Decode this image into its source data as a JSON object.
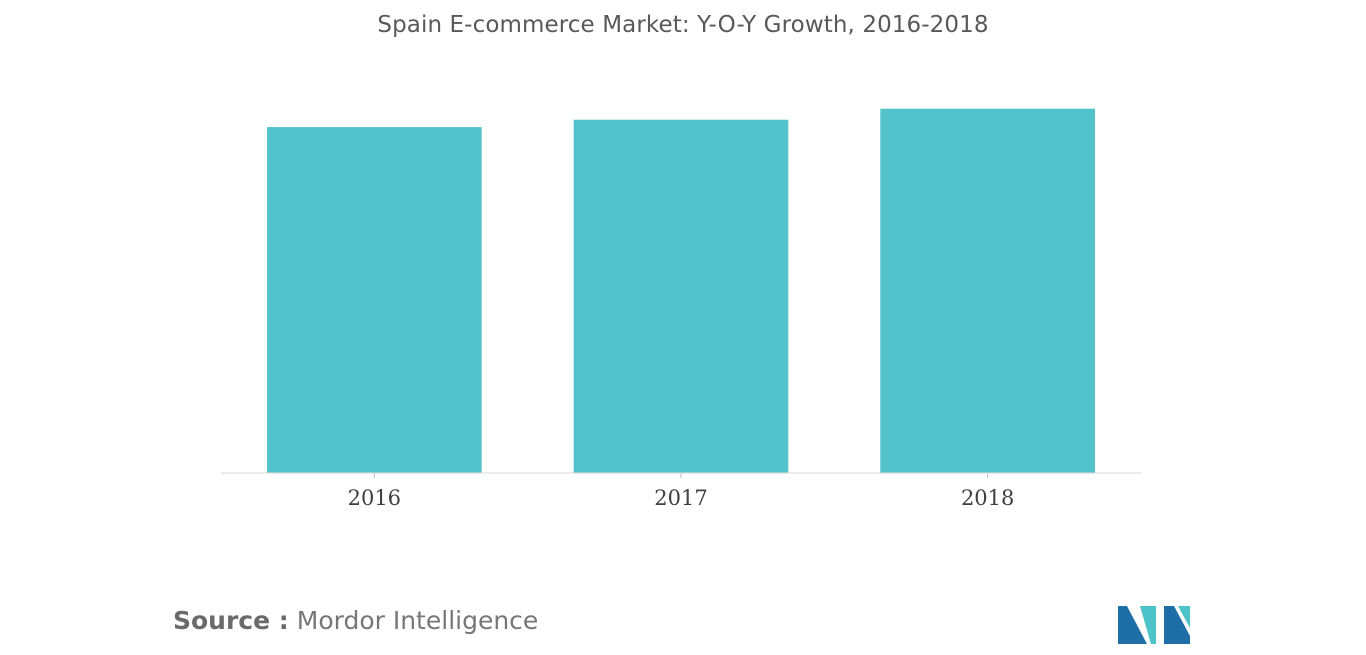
{
  "chart_data": {
    "type": "bar",
    "title": "Spain E-commerce Market: Y-O-Y Growth, 2016-2018",
    "categories": [
      "2016",
      "2017",
      "2018"
    ],
    "values": [
      94,
      96,
      99
    ],
    "ylim": [
      0,
      100
    ],
    "xlabel": "",
    "ylabel": "",
    "grid": false,
    "legend": "none",
    "bar_color": "#52c3ca"
  },
  "source": {
    "label": "Source :",
    "text": "Mordor Intelligence"
  },
  "logo": {
    "icon": "mordor-intelligence-logo-icon",
    "colors": [
      "#1e6fa8",
      "#4cc3c9"
    ]
  }
}
